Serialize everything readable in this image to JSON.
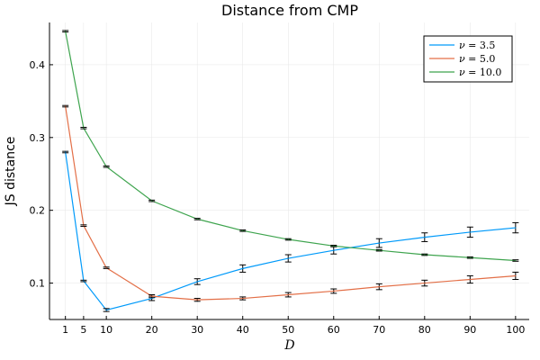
{
  "chart_data": {
    "type": "line",
    "title": "Distance from CMP",
    "xlabel": "D",
    "ylabel": "JS distance",
    "x": [
      1,
      5,
      10,
      20,
      30,
      40,
      50,
      60,
      70,
      80,
      90,
      100
    ],
    "xticks": [
      "1",
      "5",
      "10",
      "20",
      "30",
      "40",
      "50",
      "60",
      "70",
      "80",
      "90",
      "100"
    ],
    "yticks": [
      0.1,
      0.2,
      0.3,
      0.4
    ],
    "ytick_labels": [
      "0.1",
      "0.2",
      "0.3",
      "0.4"
    ],
    "xlim": [
      -2.5,
      103
    ],
    "ylim": [
      0.05,
      0.458
    ],
    "grid": true,
    "legend_position": "top-right",
    "series": [
      {
        "name": "ν = 3.5",
        "label_symbol": "ν",
        "label_value": "= 3.5",
        "color": "#009AFA",
        "values": [
          0.28,
          0.103,
          0.063,
          0.079,
          0.102,
          0.12,
          0.134,
          0.145,
          0.155,
          0.163,
          0.17,
          0.176
        ],
        "errors": [
          0.001,
          0.001,
          0.002,
          0.003,
          0.004,
          0.005,
          0.005,
          0.005,
          0.006,
          0.006,
          0.007,
          0.007
        ]
      },
      {
        "name": "ν = 5.0",
        "label_symbol": "ν",
        "label_value": "= 5.0",
        "color": "#E36F47",
        "values": [
          0.343,
          0.179,
          0.121,
          0.082,
          0.077,
          0.079,
          0.084,
          0.089,
          0.095,
          0.1,
          0.105,
          0.11
        ],
        "errors": [
          0.001,
          0.001,
          0.001,
          0.002,
          0.002,
          0.002,
          0.003,
          0.003,
          0.004,
          0.004,
          0.005,
          0.005
        ]
      },
      {
        "name": "ν = 10.0",
        "label_symbol": "ν",
        "label_value": "= 10.0",
        "color": "#3EA44E",
        "values": [
          0.446,
          0.313,
          0.26,
          0.213,
          0.188,
          0.172,
          0.16,
          0.151,
          0.145,
          0.139,
          0.135,
          0.131
        ],
        "errors": [
          0.001,
          0.001,
          0.001,
          0.001,
          0.001,
          0.001,
          0.001,
          0.001,
          0.001,
          0.001,
          0.001,
          0.001
        ]
      }
    ]
  }
}
